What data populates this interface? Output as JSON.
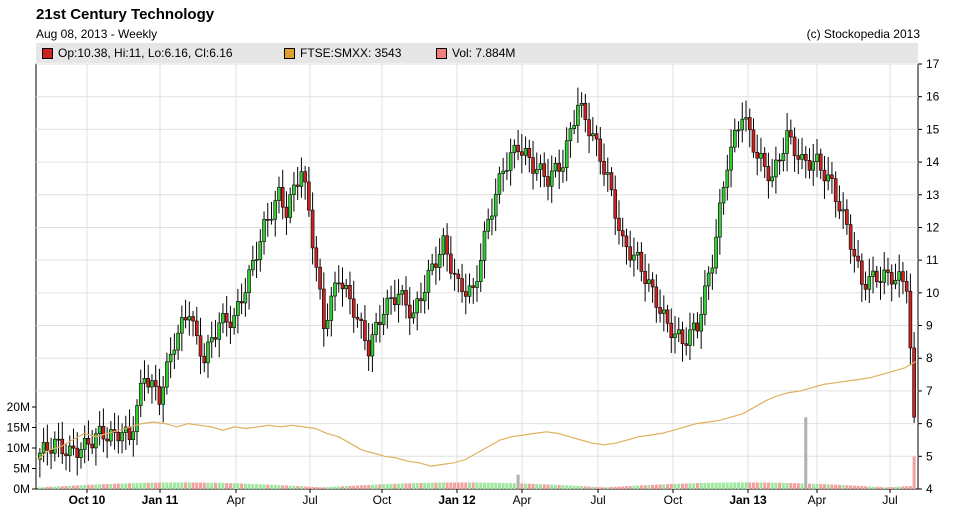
{
  "header": {
    "title": "21st Century Technology",
    "subtitle": "Aug 08, 2013 - Weekly",
    "copyright": "(c) Stockopedia 2013"
  },
  "legend": [
    {
      "label": "Op:10.38, Hi:11, Lo:6.16, Cl:6.16",
      "color": "#cc2222"
    },
    {
      "label": "FTSE:SMXX: 3543",
      "color": "#e0a030"
    },
    {
      "label": "Vol: 7.884M",
      "color": "#f08080"
    }
  ],
  "chart_data": {
    "type": "candlestick",
    "price_axis": {
      "min": 4,
      "max": 17,
      "ticks": [
        "4",
        "5",
        "6",
        "7",
        "8",
        "9",
        "10",
        "11",
        "12",
        "13",
        "14",
        "15",
        "16",
        "17"
      ]
    },
    "volume_axis": {
      "ticks": [
        "0M",
        "5M",
        "10M",
        "15M",
        "20M"
      ],
      "max": 20
    },
    "x_ticks": [
      "Oct 10",
      "Jan 11",
      "Apr",
      "Jul",
      "Oct",
      "Jan 12",
      "Apr",
      "Jul",
      "Oct",
      "Jan 13",
      "Apr",
      "Jul"
    ],
    "grid": true,
    "colors": {
      "up": "#33cc33",
      "down": "#cc2222",
      "index": "#e0b060",
      "vol_up": "#9de89d",
      "vol_down": "#f2a0a0",
      "vol_neutral": "#b0b0b0"
    },
    "index_series_name": "FTSE:SMXX",
    "index_line": [
      4.9,
      5.2,
      5.3,
      5.5,
      5.7,
      5.6,
      5.7,
      5.8,
      5.9,
      6.0,
      6.05,
      6.0,
      5.9,
      6.0,
      5.95,
      5.9,
      5.8,
      5.9,
      5.85,
      5.9,
      5.95,
      5.9,
      5.95,
      5.9,
      5.85,
      5.7,
      5.6,
      5.4,
      5.2,
      5.1,
      5.0,
      4.95,
      4.85,
      4.8,
      4.7,
      4.75,
      4.8,
      4.9,
      5.1,
      5.3,
      5.5,
      5.6,
      5.65,
      5.7,
      5.75,
      5.7,
      5.6,
      5.5,
      5.4,
      5.35,
      5.4,
      5.5,
      5.6,
      5.65,
      5.7,
      5.8,
      5.9,
      6.0,
      6.05,
      6.1,
      6.2,
      6.3,
      6.5,
      6.7,
      6.85,
      6.95,
      7.0,
      7.1,
      7.2,
      7.25,
      7.3,
      7.35,
      7.4,
      7.5,
      7.6,
      7.7,
      7.9
    ]
  }
}
